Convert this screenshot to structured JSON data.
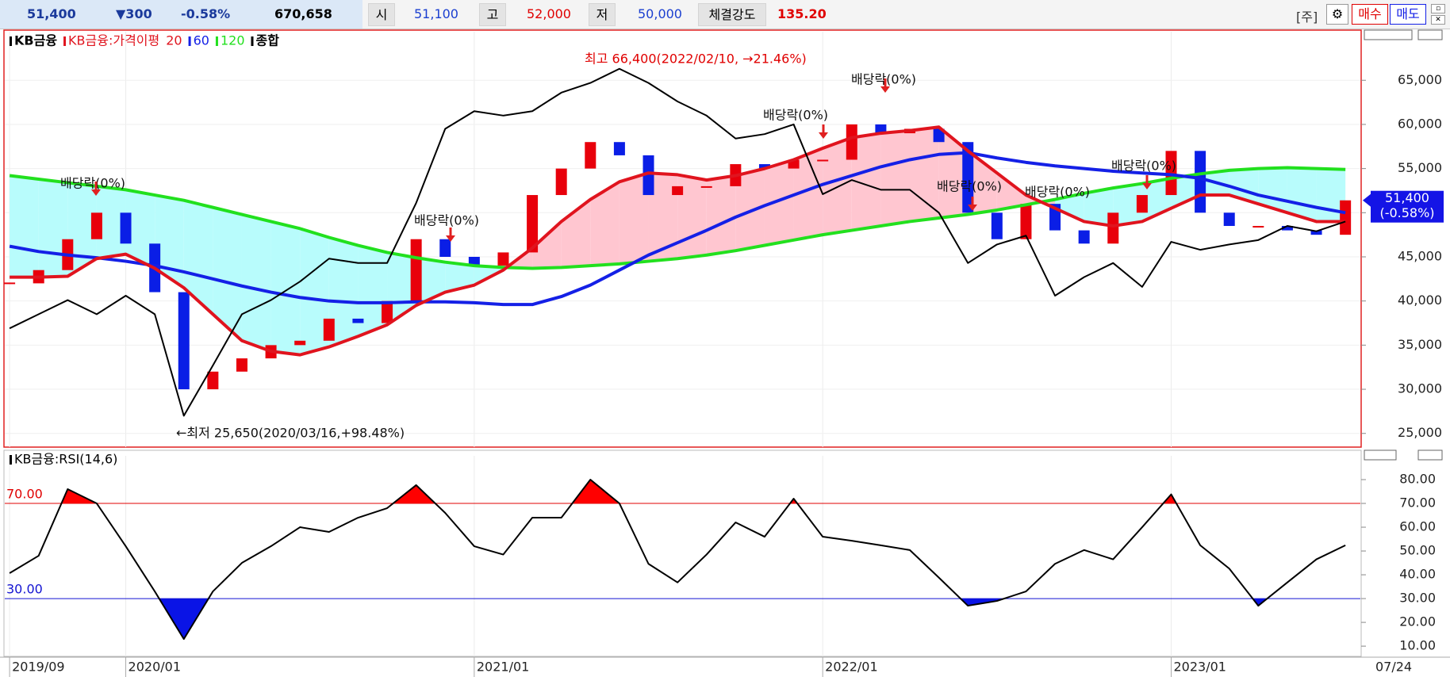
{
  "header": {
    "price": "51,400",
    "change": "▼300",
    "change_pct": "-0.58%",
    "volume": "670,658",
    "open_label": "시",
    "open": "51,100",
    "high_label": "고",
    "high": "52,000",
    "low_label": "저",
    "low": "50,000",
    "strength_label": "체결강도",
    "strength": "135.20",
    "code_button": "[주]",
    "buy_button": "매수",
    "sell_button": "매도"
  },
  "chart_data": [
    {
      "type": "candlestick",
      "legend_title": "KB금융:가격이평",
      "categories": [
        "2019/09",
        null,
        null,
        null,
        "2020/01",
        null,
        null,
        null,
        null,
        null,
        null,
        null,
        null,
        null,
        null,
        null,
        "2021/01",
        null,
        null,
        null,
        null,
        null,
        null,
        null,
        null,
        null,
        null,
        null,
        "2022/01",
        null,
        null,
        null,
        null,
        null,
        null,
        null,
        null,
        null,
        null,
        null,
        "2023/01",
        null,
        null,
        null,
        null,
        null,
        "07/24"
      ],
      "up_color": "#e8000b",
      "down_color": "#0a1ee6",
      "fill_colors": {
        "above": "#ffc6d0",
        "below": "#b8fcfc"
      },
      "series": [
        {
          "name": "KB금융",
          "color": "#000000",
          "values": [
            42000,
            43500,
            47000,
            50000,
            46500,
            41000,
            30000,
            32000,
            33500,
            35000,
            35500,
            38000,
            37500,
            40000,
            47000,
            45000,
            44000,
            45500,
            52000,
            55000,
            58000,
            56500,
            52000,
            53000,
            53000,
            55500,
            55000,
            56000,
            56000,
            60000,
            59000,
            59500,
            58000,
            50000,
            47000,
            51000,
            48000,
            46500,
            50000,
            52000,
            57000,
            50000,
            48500,
            48500,
            48000,
            47500,
            51400
          ]
        },
        {
          "name": "20",
          "color": "#e0141e",
          "values": [
            42700,
            42700,
            42800,
            44800,
            45300,
            43700,
            41500,
            38500,
            35500,
            34300,
            33900,
            34800,
            36000,
            37300,
            39500,
            41000,
            41800,
            43500,
            46000,
            49000,
            51500,
            53500,
            54500,
            54300,
            53700,
            54200,
            55000,
            56000,
            57300,
            58500,
            59000,
            59300,
            59700,
            57000,
            54500,
            52000,
            50500,
            49000,
            48500,
            49000,
            50500,
            52000,
            52000,
            51000,
            50000,
            49000,
            49000
          ]
        },
        {
          "name": "60",
          "color": "#1420e6",
          "values": [
            46200,
            45600,
            45200,
            44900,
            44500,
            44000,
            43300,
            42500,
            41700,
            41000,
            40400,
            40000,
            39800,
            39800,
            39900,
            39900,
            39800,
            39600,
            39600,
            40500,
            41800,
            43500,
            45200,
            46600,
            48000,
            49500,
            50800,
            52000,
            53200,
            54200,
            55200,
            56000,
            56600,
            56800,
            56200,
            55700,
            55300,
            55000,
            54700,
            54500,
            54300,
            53900,
            53000,
            52000,
            51300,
            50600,
            50000
          ]
        },
        {
          "name": "120",
          "color": "#22e01e",
          "values": [
            54200,
            53800,
            53400,
            53000,
            52600,
            52000,
            51400,
            50600,
            49800,
            49000,
            48200,
            47200,
            46300,
            45500,
            44900,
            44400,
            44000,
            43800,
            43700,
            43800,
            44000,
            44200,
            44500,
            44800,
            45200,
            45700,
            46300,
            46900,
            47500,
            48000,
            48500,
            49000,
            49400,
            49800,
            50300,
            50900,
            51500,
            52200,
            52800,
            53300,
            53900,
            54400,
            54800,
            55000,
            55100,
            55000,
            54900
          ]
        },
        {
          "name": "종합",
          "color": "#000000",
          "values": [
            36900,
            38500,
            40100,
            38500,
            40600,
            38500,
            27000,
            32700,
            38500,
            40100,
            42200,
            44800,
            44300,
            44300,
            51100,
            59500,
            61500,
            61000,
            61500,
            63600,
            64700,
            66300,
            64700,
            62600,
            61000,
            58400,
            58900,
            60000,
            52100,
            53700,
            52600,
            52600,
            50000,
            44300,
            46400,
            47400,
            40600,
            42700,
            44300,
            41600,
            46700,
            45800,
            46400,
            46900,
            48500,
            47900,
            49000
          ]
        }
      ],
      "ylim": [
        23450,
        70500
      ],
      "yticks": [
        {
          "value": 25000,
          "label": "25,000"
        },
        {
          "value": 30000,
          "label": "30,000"
        },
        {
          "value": 35000,
          "label": "35,000"
        },
        {
          "value": 40000,
          "label": "40,000"
        },
        {
          "value": 45000,
          "label": "45,000"
        },
        {
          "value": 50000,
          "label": "50,000"
        },
        {
          "value": 55000,
          "label": "55,000"
        },
        {
          "value": 60000,
          "label": "60,000"
        },
        {
          "value": 65000,
          "label": "65,000"
        }
      ],
      "last_price": {
        "value": 51400,
        "label": "51,400",
        "change_label": "(-0.58%)"
      },
      "annotations": [
        "배당락(0%)",
        "배당락(0%)",
        "배당락(0%)",
        "배당락(0%)",
        "배당락(0%)",
        "배당락(0%)",
        "배당락(0%)",
        "최고 66,400(2022/02/10, →21.46%)",
        "←최저 25,650(2020/03/16,+98.48%)"
      ]
    },
    {
      "type": "line",
      "title": "KB금융:RSI(14,6)",
      "color": "#000000",
      "values": [
        40.7,
        48,
        76,
        70,
        52,
        33,
        13,
        33,
        45,
        52,
        60,
        58,
        64,
        68,
        77.7,
        66,
        52,
        48.5,
        64,
        64,
        80,
        70,
        44.6,
        36.8,
        48.5,
        62,
        56,
        72,
        56,
        54.3,
        52.4,
        50.4,
        38.8,
        27,
        29,
        33,
        44.6,
        50.4,
        46.5,
        60,
        73.8,
        52.4,
        42.6,
        27,
        36.8,
        46.5,
        52.4
      ],
      "ylim": [
        5.7,
        90
      ],
      "yticks": [
        {
          "value": 10,
          "label": "10.00"
        },
        {
          "value": 20,
          "label": "20.00"
        },
        {
          "value": 30,
          "label": "30.00"
        },
        {
          "value": 40,
          "label": "40.00"
        },
        {
          "value": 50,
          "label": "50.00"
        },
        {
          "value": 60,
          "label": "60.00"
        },
        {
          "value": 70,
          "label": "70.00"
        },
        {
          "value": 80,
          "label": "80.00"
        }
      ],
      "levels": [
        {
          "value": 70,
          "label": "70.00",
          "color": "#e00000",
          "fill": "#ff0000",
          "side": "above"
        },
        {
          "value": 30,
          "label": "30.00",
          "color": "#1414d2",
          "fill": "#0a14e6",
          "side": "below"
        }
      ]
    }
  ]
}
